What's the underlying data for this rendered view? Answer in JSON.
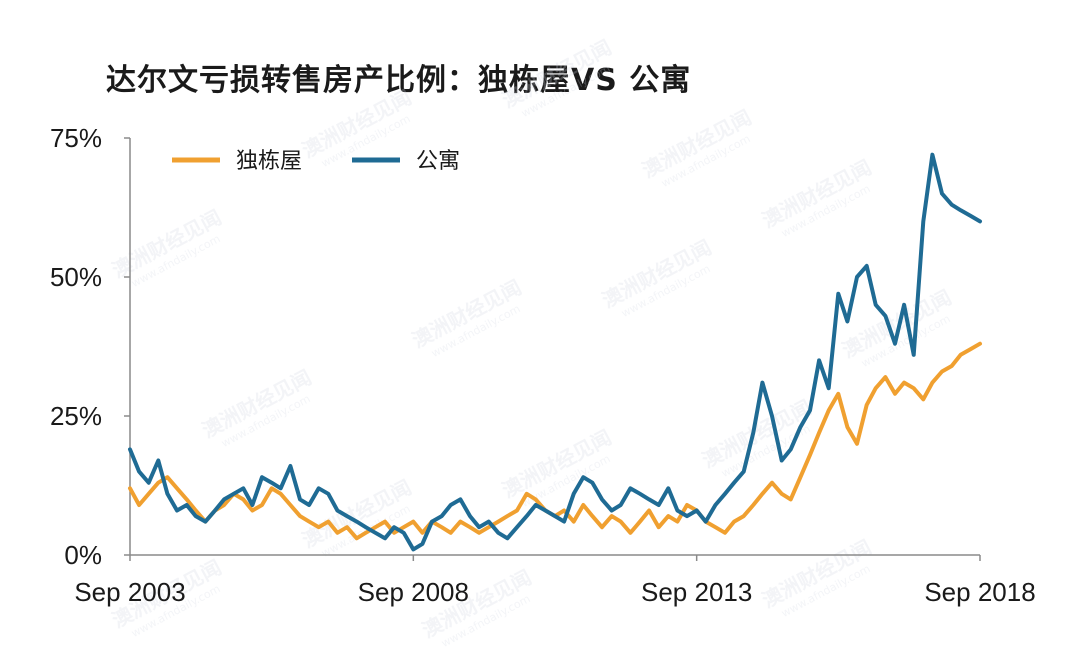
{
  "title": "达尔文亏损转售房产比例：独栋屋VS 公寓",
  "watermark": {
    "text": "澳洲财经见闻",
    "sub": "www.afndaily.com"
  },
  "chart_data": {
    "type": "line",
    "title": "达尔文亏损转售房产比例：独栋屋VS 公寓",
    "ylim": [
      0,
      75
    ],
    "yticks": [
      0,
      25,
      50,
      75
    ],
    "ytick_labels": [
      "0%",
      "25%",
      "50%",
      "75%"
    ],
    "xlim": [
      2003.67,
      2018.67
    ],
    "xticks": [
      2003.67,
      2008.67,
      2013.67,
      2018.67
    ],
    "xtick_labels": [
      "Sep 2003",
      "Sep 2008",
      "Sep 2013",
      "Sep 2018"
    ],
    "legend_position": "top-left",
    "grid": false,
    "series": [
      {
        "name": "独栋屋",
        "color": "#F0A030",
        "x": [
          2003.67,
          2003.83,
          2004.0,
          2004.17,
          2004.33,
          2004.5,
          2004.67,
          2004.83,
          2005.0,
          2005.17,
          2005.33,
          2005.5,
          2005.67,
          2005.83,
          2006.0,
          2006.17,
          2006.33,
          2006.5,
          2006.67,
          2006.83,
          2007.0,
          2007.17,
          2007.33,
          2007.5,
          2007.67,
          2007.83,
          2008.0,
          2008.17,
          2008.33,
          2008.5,
          2008.67,
          2008.83,
          2009.0,
          2009.17,
          2009.33,
          2009.5,
          2009.67,
          2009.83,
          2010.0,
          2010.17,
          2010.33,
          2010.5,
          2010.67,
          2010.83,
          2011.0,
          2011.17,
          2011.33,
          2011.5,
          2011.67,
          2011.83,
          2012.0,
          2012.17,
          2012.33,
          2012.5,
          2012.67,
          2012.83,
          2013.0,
          2013.17,
          2013.33,
          2013.5,
          2013.67,
          2013.83,
          2014.0,
          2014.17,
          2014.33,
          2014.5,
          2014.67,
          2014.83,
          2015.0,
          2015.17,
          2015.33,
          2015.5,
          2015.67,
          2015.83,
          2016.0,
          2016.17,
          2016.33,
          2016.5,
          2016.67,
          2016.83,
          2017.0,
          2017.17,
          2017.33,
          2017.5,
          2017.67,
          2017.83,
          2018.0,
          2018.17,
          2018.33,
          2018.5,
          2018.67
        ],
        "y": [
          12,
          9,
          11,
          13,
          14,
          12,
          10,
          8,
          6,
          8,
          9,
          11,
          10,
          8,
          9,
          12,
          11,
          9,
          7,
          6,
          5,
          6,
          4,
          5,
          3,
          4,
          5,
          6,
          4,
          5,
          6,
          4,
          6,
          5,
          4,
          6,
          5,
          4,
          5,
          6,
          7,
          8,
          11,
          10,
          8,
          7,
          8,
          6,
          9,
          7,
          5,
          7,
          6,
          4,
          6,
          8,
          5,
          7,
          6,
          9,
          8,
          6,
          5,
          4,
          6,
          7,
          9,
          11,
          13,
          11,
          10,
          14,
          18,
          22,
          26,
          29,
          23,
          20,
          27,
          30,
          32,
          29,
          31,
          30,
          28,
          31,
          33,
          34,
          36,
          37,
          38
        ]
      },
      {
        "name": "公寓",
        "color": "#1F6B94",
        "x": [
          2003.67,
          2003.83,
          2004.0,
          2004.17,
          2004.33,
          2004.5,
          2004.67,
          2004.83,
          2005.0,
          2005.17,
          2005.33,
          2005.5,
          2005.67,
          2005.83,
          2006.0,
          2006.17,
          2006.33,
          2006.5,
          2006.67,
          2006.83,
          2007.0,
          2007.17,
          2007.33,
          2007.5,
          2007.67,
          2007.83,
          2008.0,
          2008.17,
          2008.33,
          2008.5,
          2008.67,
          2008.83,
          2009.0,
          2009.17,
          2009.33,
          2009.5,
          2009.67,
          2009.83,
          2010.0,
          2010.17,
          2010.33,
          2010.5,
          2010.67,
          2010.83,
          2011.0,
          2011.17,
          2011.33,
          2011.5,
          2011.67,
          2011.83,
          2012.0,
          2012.17,
          2012.33,
          2012.5,
          2012.67,
          2012.83,
          2013.0,
          2013.17,
          2013.33,
          2013.5,
          2013.67,
          2013.83,
          2014.0,
          2014.17,
          2014.33,
          2014.5,
          2014.67,
          2014.83,
          2015.0,
          2015.17,
          2015.33,
          2015.5,
          2015.67,
          2015.83,
          2016.0,
          2016.17,
          2016.33,
          2016.5,
          2016.67,
          2016.83,
          2017.0,
          2017.17,
          2017.33,
          2017.5,
          2017.67,
          2017.83,
          2018.0,
          2018.17,
          2018.33,
          2018.5,
          2018.67
        ],
        "y": [
          19,
          15,
          13,
          17,
          11,
          8,
          9,
          7,
          6,
          8,
          10,
          11,
          12,
          9,
          14,
          13,
          12,
          16,
          10,
          9,
          12,
          11,
          8,
          7,
          6,
          5,
          4,
          3,
          5,
          4,
          1,
          2,
          6,
          7,
          9,
          10,
          7,
          5,
          6,
          4,
          3,
          5,
          7,
          9,
          8,
          7,
          6,
          11,
          14,
          13,
          10,
          8,
          9,
          12,
          11,
          10,
          9,
          12,
          8,
          7,
          8,
          6,
          9,
          11,
          13,
          15,
          22,
          31,
          25,
          17,
          19,
          23,
          26,
          35,
          30,
          47,
          42,
          50,
          52,
          45,
          43,
          38,
          45,
          36,
          60,
          72,
          65,
          63,
          62,
          61,
          60
        ]
      }
    ]
  }
}
